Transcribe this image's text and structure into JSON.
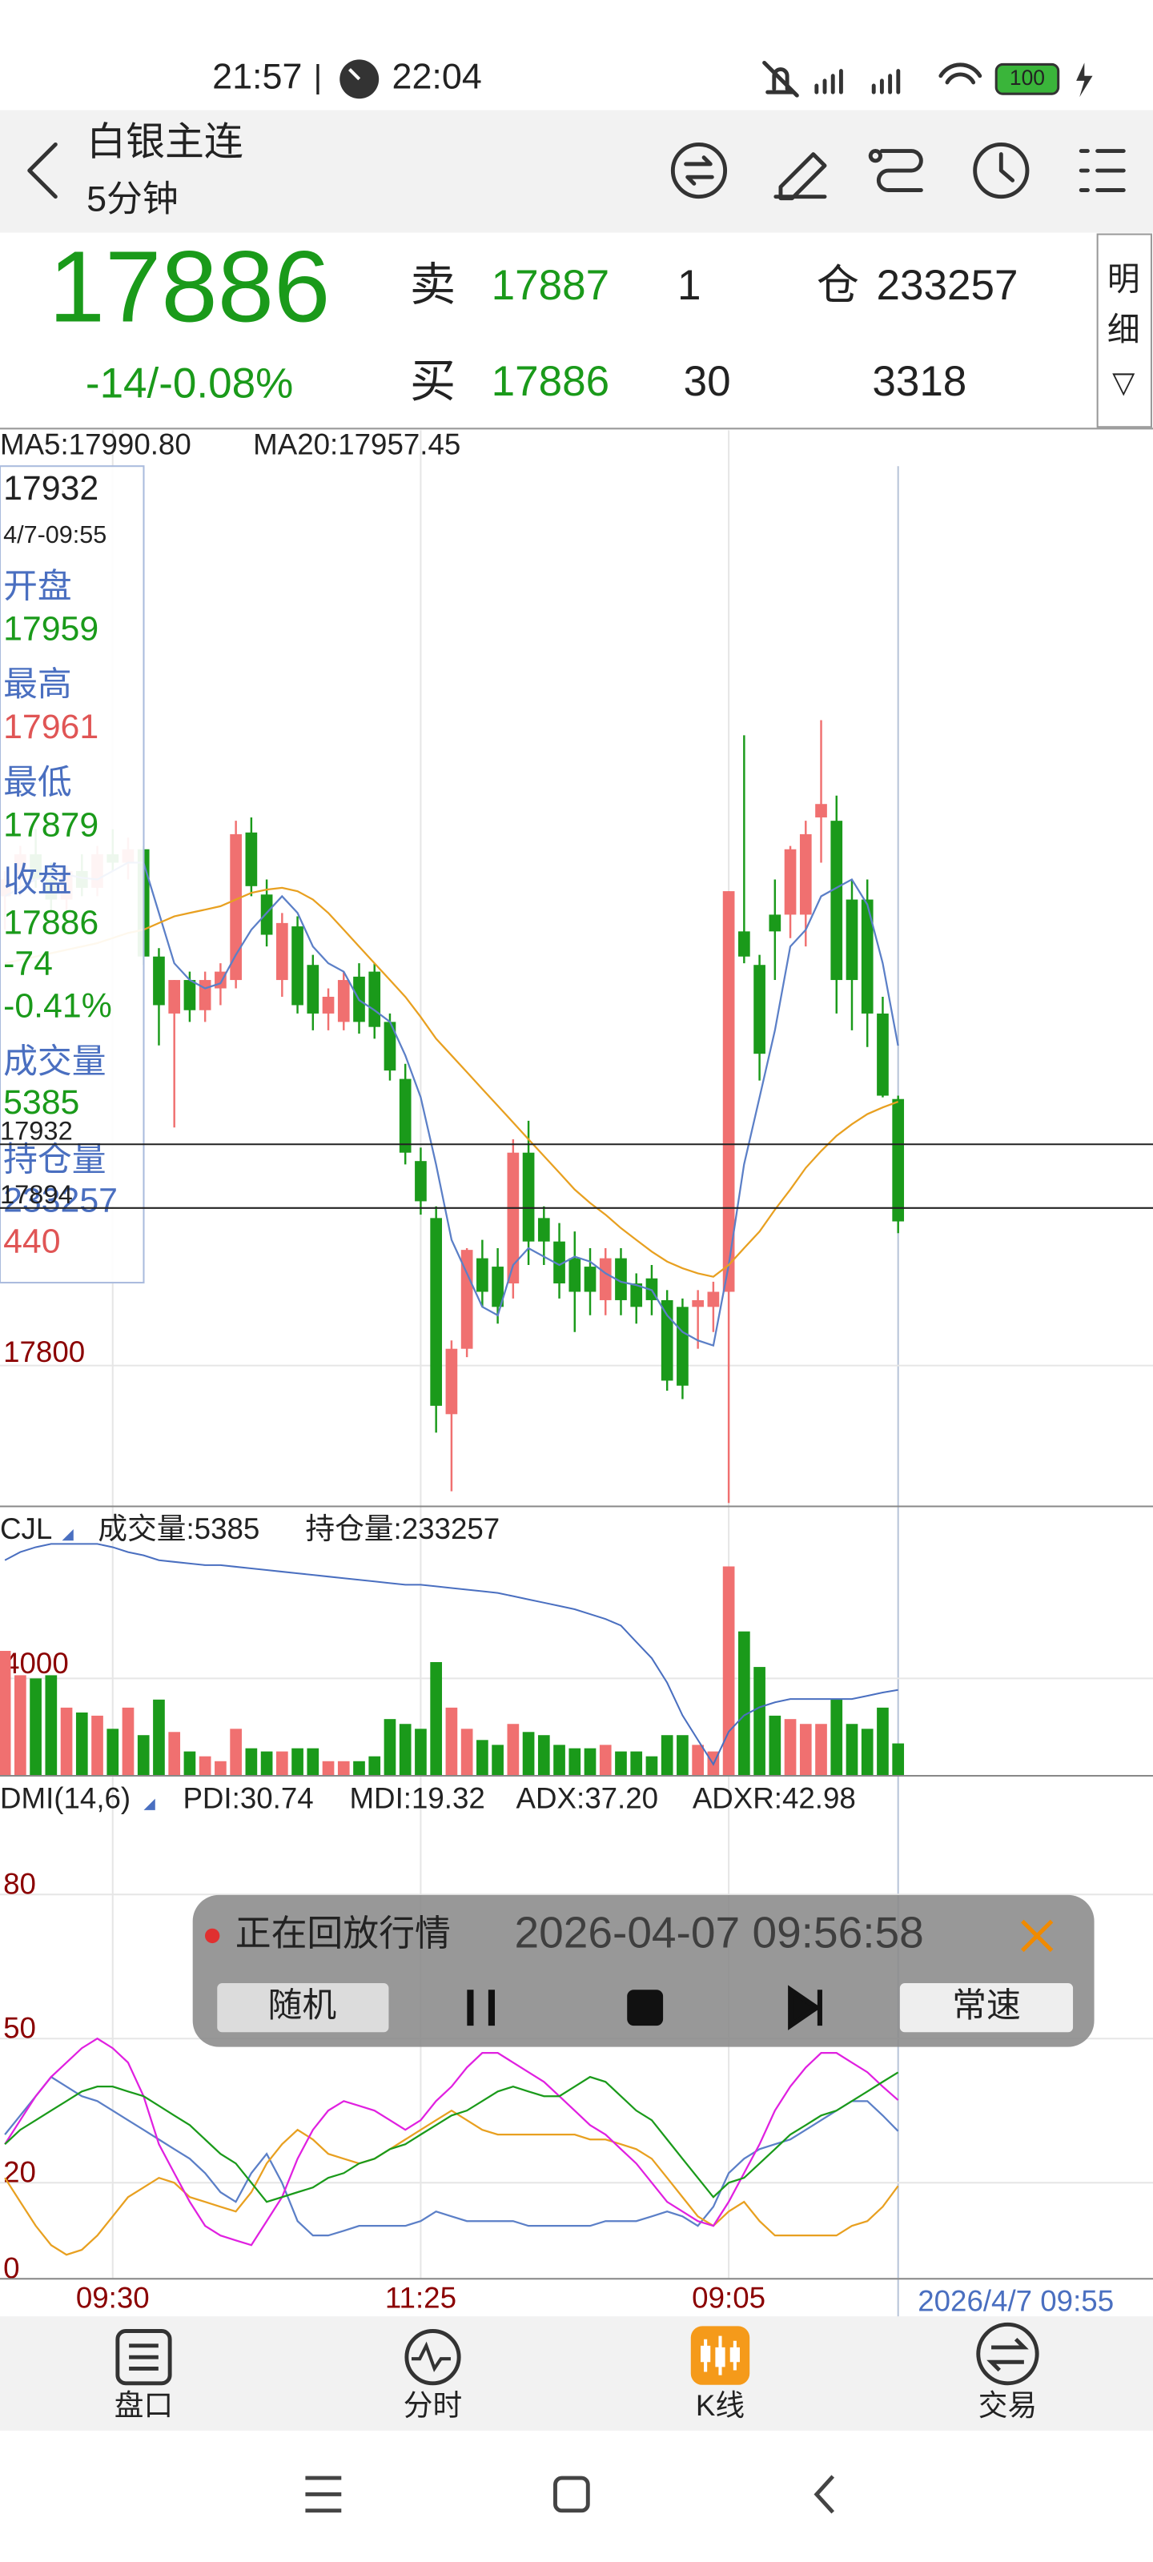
{
  "status_bar": {
    "time": "21:57",
    "clock_time": "22:04",
    "battery": "100"
  },
  "header": {
    "title": "白银主连",
    "subtitle": "5分钟"
  },
  "quote": {
    "price": "17886",
    "change": "-14/-0.08%",
    "sell_label": "卖",
    "sell_price": "17887",
    "sell_qty": "1",
    "buy_label": "买",
    "buy_price": "17886",
    "buy_qty": "30",
    "oi_label": "仓",
    "oi": "233257",
    "volume": "3318",
    "detail": [
      "明",
      "细",
      "▽"
    ]
  },
  "info_box": {
    "price": "17932",
    "time": "4/7-09:55",
    "open_label": "开盘",
    "open": "17959",
    "high_label": "最高",
    "high": "17961",
    "low_label": "最低",
    "low": "17879",
    "close_label": "收盘",
    "close": "17886",
    "change": "-74",
    "pct": "-0.41%",
    "volume_label": "成交量",
    "volume": "5385",
    "oi_label": "持仓量",
    "oi": "233257",
    "oi_change": "440"
  },
  "chart_data": [
    {
      "type": "candlestick",
      "up_color": "#f07070",
      "down_color": "#1a9a1a",
      "open": [
        18080,
        18090,
        18105,
        18090,
        18078,
        18095,
        18085,
        18105,
        18100,
        18108,
        18044,
        18010,
        18030,
        18012,
        18025,
        18030,
        18118,
        18081,
        18030,
        18062,
        18039,
        18010,
        18005,
        18032,
        18035,
        18005,
        17971,
        17922,
        17888,
        17771,
        17810,
        17864,
        17859,
        17849,
        17927,
        17888,
        17874,
        17864,
        17859,
        17839,
        17864,
        17849,
        17852,
        17839,
        17835,
        17835,
        17835,
        17844,
        18059,
        18039,
        18069,
        18069,
        18069,
        18127,
        18125,
        18078,
        18078,
        18010,
        17959
      ],
      "high": [
        18095,
        18110,
        18120,
        18100,
        18098,
        18105,
        18110,
        18120,
        18115,
        18110,
        18049,
        18030,
        18035,
        18035,
        18040,
        18125,
        18127,
        18090,
        18070,
        18068,
        18045,
        18025,
        18035,
        18040,
        18040,
        18010,
        17980,
        17930,
        17895,
        17815,
        17870,
        17875,
        17870,
        17935,
        17946,
        17895,
        17885,
        17880,
        17870,
        17870,
        17870,
        17855,
        17860,
        17845,
        17840,
        17845,
        17850,
        18083,
        18176,
        18045,
        18090,
        18110,
        18125,
        18185,
        18140,
        18090,
        18090,
        18020,
        17961
      ],
      "low": [
        18060,
        18080,
        18085,
        18070,
        18070,
        18080,
        18080,
        18095,
        18090,
        18039,
        17991,
        17942,
        18005,
        18005,
        18015,
        18025,
        18080,
        18050,
        18020,
        18010,
        18000,
        18000,
        18000,
        17998,
        17995,
        17970,
        17920,
        17890,
        17760,
        17725,
        17805,
        17835,
        17825,
        17840,
        17860,
        17860,
        17840,
        17820,
        17830,
        17830,
        17830,
        17825,
        17830,
        17785,
        17780,
        17810,
        17820,
        17718,
        18040,
        17970,
        18030,
        18055,
        18050,
        18100,
        18010,
        18000,
        17990,
        17960,
        17879
      ],
      "close": [
        18090,
        18105,
        18090,
        18078,
        18095,
        18085,
        18105,
        18100,
        18108,
        18044,
        18015,
        18030,
        18012,
        18030,
        18035,
        18117,
        18086,
        18057,
        18064,
        18015,
        18010,
        18020,
        18030,
        18005,
        18002,
        17976,
        17927,
        17898,
        17776,
        17810,
        17869,
        17844,
        17835,
        17927,
        17874,
        17874,
        17849,
        17844,
        17844,
        17864,
        17839,
        17835,
        17839,
        17791,
        17788,
        17839,
        17844,
        18083,
        18044,
        17986,
        18059,
        18108,
        18117,
        18135,
        18030,
        18030,
        18010,
        17961,
        17886
      ],
      "series": [
        {
          "name": "MA5:17990.80",
          "color": "#5b7fc7",
          "values": [
            18080,
            18085,
            18090,
            18092,
            18093,
            18091,
            18090,
            18095,
            18100,
            18100,
            18070,
            18040,
            18030,
            18025,
            18028,
            18045,
            18060,
            18070,
            18080,
            18070,
            18050,
            18040,
            18035,
            18018,
            18012,
            18005,
            17985,
            17960,
            17920,
            17875,
            17855,
            17835,
            17830,
            17860,
            17870,
            17865,
            17860,
            17865,
            17862,
            17855,
            17850,
            17848,
            17845,
            17830,
            17820,
            17815,
            17812,
            17860,
            17920,
            17960,
            18000,
            18050,
            18060,
            18080,
            18085,
            18090,
            18075,
            18040,
            17990.8
          ]
        },
        {
          "name": "MA20:17957.45",
          "color": "#e8a020",
          "values": [
            18040,
            18042,
            18044,
            18046,
            18048,
            18050,
            18052,
            18055,
            18058,
            18060,
            18064,
            18068,
            18070,
            18072,
            18074,
            18078,
            18082,
            18084,
            18085,
            18083,
            18078,
            18070,
            18060,
            18050,
            18040,
            18030,
            18020,
            18008,
            17995,
            17985,
            17975,
            17965,
            17955,
            17945,
            17935,
            17925,
            17915,
            17905,
            17897,
            17890,
            17882,
            17875,
            17868,
            17862,
            17858,
            17855,
            17853,
            17860,
            17870,
            17880,
            17893,
            17905,
            17918,
            17928,
            17937,
            17944,
            17950,
            17954,
            17957.45
          ]
        }
      ],
      "ylim": [
        17716,
        18358
      ],
      "yticks": [
        17800
      ],
      "reference_lines": [
        17932,
        17894
      ]
    },
    {
      "type": "bar",
      "title": "CJL",
      "series": [
        {
          "name": "成交量:5385",
          "color": "#4a6fc0",
          "values": [
            5130,
            4130,
            4000,
            4130,
            2800,
            2600,
            2470,
            1930,
            2800,
            1670,
            3130,
            1800,
            1000,
            800,
            600,
            1930,
            1130,
            1000,
            1000,
            1130,
            1130,
            600,
            600,
            600,
            800,
            2330,
            2130,
            1930,
            4670,
            2800,
            1930,
            1470,
            1270,
            2130,
            1800,
            1670,
            1270,
            1130,
            1130,
            1270,
            1000,
            1000,
            800,
            1670,
            1670,
            1270,
            1000,
            8600,
            5930,
            4470,
            2470,
            2330,
            2130,
            2130,
            3130,
            2130,
            1930,
            2800,
            1330
          ]
        },
        {
          "name": "持仓量:233257",
          "color": "#4a6fc0",
          "axis": "y2",
          "values": [
            241200,
            241700,
            242000,
            242200,
            242200,
            242200,
            242200,
            242000,
            241700,
            241500,
            241200,
            241100,
            241000,
            240900,
            240900,
            240800,
            240700,
            240600,
            240500,
            240400,
            240300,
            240200,
            240100,
            240000,
            239900,
            239800,
            239700,
            239700,
            239600,
            239500,
            239400,
            239300,
            239200,
            239000,
            238800,
            238600,
            238400,
            238200,
            237900,
            237600,
            237200,
            236200,
            235200,
            233700,
            231700,
            230200,
            228700,
            230700,
            231700,
            232200,
            232500,
            232700,
            232700,
            232700,
            232700,
            232700,
            232900,
            233100,
            233257
          ]
        }
      ],
      "ylim": [
        0,
        11000
      ],
      "yticks": [
        4000
      ],
      "y2lim": [
        228000,
        244400
      ]
    },
    {
      "type": "line",
      "title": "DMI(14,6)",
      "categories": [
        null,
        null,
        null,
        null,
        null,
        null,
        null,
        "09:30",
        null,
        null,
        null,
        null,
        null,
        null,
        null,
        null,
        null,
        null,
        null,
        null,
        null,
        null,
        null,
        null,
        null,
        null,
        null,
        "11:25",
        null,
        null,
        null,
        null,
        null,
        null,
        null,
        null,
        null,
        null,
        null,
        null,
        null,
        null,
        null,
        null,
        null,
        null,
        null,
        "09:05",
        null,
        null,
        null,
        null,
        null,
        null,
        null,
        null,
        null,
        null,
        null
      ],
      "cursor_label": "2026/4/7 09:55",
      "series": [
        {
          "name": "PDI:30.74",
          "color": "#5b7fc7",
          "values": [
            30,
            34,
            38,
            42,
            40,
            38,
            37,
            35,
            33,
            31,
            29,
            27,
            25,
            22,
            18,
            16,
            22,
            26,
            20,
            12,
            9,
            9,
            10,
            11,
            11,
            11,
            11,
            12,
            14,
            13,
            12,
            12,
            12,
            12,
            11,
            11,
            11,
            11,
            11,
            12,
            12,
            12,
            13,
            14,
            13,
            11,
            15,
            22,
            25,
            27,
            28,
            29,
            31,
            33,
            35,
            37,
            37,
            34,
            30.74
          ]
        },
        {
          "name": "MDI:19.32",
          "color": "#e8a020",
          "values": [
            21,
            16,
            11,
            7,
            5,
            6,
            9,
            13,
            17,
            19,
            21,
            20,
            17,
            16,
            15,
            14,
            18,
            24,
            28,
            31,
            29,
            26,
            25,
            24,
            25,
            27,
            29,
            31,
            33,
            35,
            33,
            31,
            30,
            30,
            30,
            30,
            30,
            30,
            29,
            29,
            28,
            27,
            25,
            21,
            17,
            13,
            11,
            14,
            16,
            12,
            9,
            9,
            9,
            9,
            9,
            11,
            12,
            15,
            19.32
          ]
        },
        {
          "name": "ADX:37.20",
          "color": "#e020e0",
          "values": [
            28,
            33,
            38,
            42,
            45,
            48,
            50,
            48,
            45,
            38,
            28,
            22,
            16,
            11,
            9,
            8,
            7,
            12,
            17,
            25,
            31,
            35,
            37,
            36,
            35,
            33,
            31,
            33,
            37,
            40,
            44,
            47,
            47,
            45,
            43,
            41,
            38,
            35,
            32,
            30,
            27,
            24,
            20,
            16,
            14,
            12,
            11,
            16,
            22,
            28,
            35,
            40,
            44,
            47,
            47,
            45,
            43,
            40,
            37.2
          ]
        },
        {
          "name": "ADXR:42.98",
          "color": "#1a9a1a",
          "values": [
            28,
            31,
            33,
            35,
            37,
            39,
            40,
            40,
            39,
            38,
            36,
            34,
            32,
            29,
            26,
            24,
            20,
            16,
            17,
            18,
            19,
            21,
            22,
            24,
            25,
            27,
            28,
            30,
            32,
            34,
            35,
            37,
            39,
            40,
            39,
            38,
            38,
            40,
            42,
            41,
            38,
            35,
            33,
            29,
            25,
            21,
            17,
            20,
            21,
            24,
            27,
            30,
            32,
            34,
            35,
            37,
            39,
            41,
            42.98
          ]
        }
      ],
      "ylim": [
        0,
        103
      ],
      "yticks": [
        0,
        20,
        50,
        80
      ]
    }
  ],
  "replay": {
    "status": "正在回放行情",
    "time": "2026-04-07 09:56:58",
    "random": "随机",
    "speed": "常速"
  },
  "nav": [
    "盘口",
    "分时",
    "K线",
    "交易"
  ]
}
